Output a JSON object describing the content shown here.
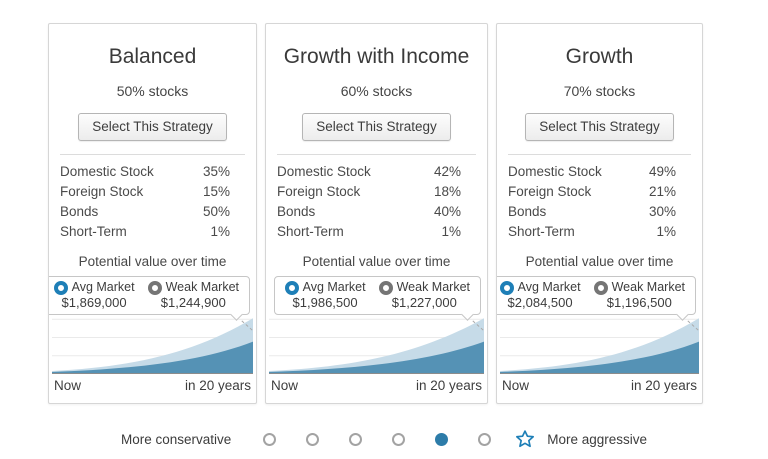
{
  "colors": {
    "accent_blue": "#1e7fb7",
    "selected_dot_blue": "#2d7ca9",
    "area_light_blue": "#c6dbe8",
    "area_dark_blue": "#5592b5",
    "weak_market_gray": "#757575"
  },
  "cards": [
    {
      "title": "Balanced",
      "stocks": "50% stocks",
      "select_label": "Select This Strategy",
      "allocations": [
        {
          "label": "Domestic Stock",
          "value": "35%"
        },
        {
          "label": "Foreign Stock",
          "value": "15%"
        },
        {
          "label": "Bonds",
          "value": "50%"
        },
        {
          "label": "Short-Term",
          "value": "1%"
        }
      ],
      "potential_label": "Potential value over time",
      "legend": {
        "avg_label": "Avg Market",
        "avg_value": "$1,869,000",
        "weak_label": "Weak Market",
        "weak_value": "$1,244,900"
      },
      "x_start": "Now",
      "x_end": "in 20 years"
    },
    {
      "title": "Growth with Income",
      "stocks": "60% stocks",
      "select_label": "Select This Strategy",
      "allocations": [
        {
          "label": "Domestic Stock",
          "value": "42%"
        },
        {
          "label": "Foreign Stock",
          "value": "18%"
        },
        {
          "label": "Bonds",
          "value": "40%"
        },
        {
          "label": "Short-Term",
          "value": "1%"
        }
      ],
      "potential_label": "Potential value over time",
      "legend": {
        "avg_label": "Avg Market",
        "avg_value": "$1,986,500",
        "weak_label": "Weak Market",
        "weak_value": "$1,227,000"
      },
      "x_start": "Now",
      "x_end": "in 20 years"
    },
    {
      "title": "Growth",
      "stocks": "70% stocks",
      "select_label": "Select This Strategy",
      "allocations": [
        {
          "label": "Domestic Stock",
          "value": "49%"
        },
        {
          "label": "Foreign Stock",
          "value": "21%"
        },
        {
          "label": "Bonds",
          "value": "30%"
        },
        {
          "label": "Short-Term",
          "value": "1%"
        }
      ],
      "potential_label": "Potential value over time",
      "legend": {
        "avg_label": "Avg Market",
        "avg_value": "$2,084,500",
        "weak_label": "Weak Market",
        "weak_value": "$1,196,500"
      },
      "x_start": "Now",
      "x_end": "in 20 years"
    }
  ],
  "slider": {
    "left_label": "More conservative",
    "right_label": "More aggressive",
    "dots": [
      {
        "selected": false
      },
      {
        "selected": false
      },
      {
        "selected": false
      },
      {
        "selected": false
      },
      {
        "selected": true
      },
      {
        "selected": false
      }
    ]
  },
  "chart_data": [
    {
      "type": "area",
      "title": "Potential value over time (Balanced)",
      "x": [
        "Now",
        "in 20 years"
      ],
      "series": [
        {
          "name": "Avg Market",
          "end_value": 1869000
        },
        {
          "name": "Weak Market",
          "end_value": 1244900
        }
      ],
      "legend_position": "top-right",
      "grid": "horizontal-faint"
    },
    {
      "type": "area",
      "title": "Potential value over time (Growth with Income)",
      "x": [
        "Now",
        "in 20 years"
      ],
      "series": [
        {
          "name": "Avg Market",
          "end_value": 1986500
        },
        {
          "name": "Weak Market",
          "end_value": 1227000
        }
      ],
      "legend_position": "top-right",
      "grid": "horizontal-faint"
    },
    {
      "type": "area",
      "title": "Potential value over time (Growth)",
      "x": [
        "Now",
        "in 20 years"
      ],
      "series": [
        {
          "name": "Avg Market",
          "end_value": 2084500
        },
        {
          "name": "Weak Market",
          "end_value": 1196500
        }
      ],
      "legend_position": "top-right",
      "grid": "horizontal-faint"
    }
  ]
}
